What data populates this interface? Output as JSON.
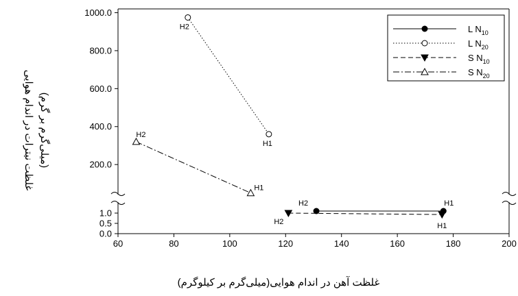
{
  "chart_data": {
    "type": "line",
    "xlabel": "غلظت آهن در اندام هوایی(میلی‌گرم بر کیلوگرم)",
    "ylabel": [
      "غلظت نیترات در اندام هوایی",
      "(میلی‌گرم بر گرم)"
    ],
    "xlim": [
      60,
      200
    ],
    "x_ticks": [
      60,
      80,
      100,
      120,
      140,
      160,
      180,
      200
    ],
    "x_tick_labels": [
      "60",
      "80",
      "100",
      "120",
      "140",
      "160",
      "180",
      "200"
    ],
    "y_axis_broken": true,
    "y_lower": {
      "ylim": [
        0,
        1.2
      ],
      "ticks": [
        0,
        0.5,
        1
      ],
      "tick_labels": [
        "0.0",
        "0.5",
        "1.0"
      ]
    },
    "y_upper": {
      "ylim": [
        20,
        1020
      ],
      "ticks": [
        200,
        400,
        600,
        800,
        1000
      ],
      "tick_labels": [
        "200.0",
        "400.0",
        "600.0",
        "800.0",
        "1000.0"
      ]
    },
    "grid": false,
    "legend_position": "top-right",
    "series": [
      {
        "name": "L N",
        "sub": "10",
        "line": "solid",
        "marker": "circle-filled",
        "segment": "lower",
        "points": [
          {
            "label": "H2",
            "x": 131,
            "y": 1.1
          },
          {
            "label": "H1",
            "x": 176.5,
            "y": 1.1
          }
        ]
      },
      {
        "name": "L N",
        "sub": "20",
        "line": "dotted",
        "marker": "circle-open",
        "segment": "upper",
        "points": [
          {
            "label": "H2",
            "x": 85,
            "y": 975
          },
          {
            "label": "H1",
            "x": 114,
            "y": 360
          }
        ]
      },
      {
        "name": "S N",
        "sub": "10",
        "line": "dashed",
        "marker": "triangle-down-filled",
        "segment": "lower",
        "points": [
          {
            "label": "H2",
            "x": 121,
            "y": 1.0
          },
          {
            "label": "H1",
            "x": 176,
            "y": 0.93
          }
        ]
      },
      {
        "name": "S N",
        "sub": "20",
        "line": "dashdot",
        "marker": "triangle-up-open",
        "segment": "upper",
        "points": [
          {
            "label": "H2",
            "x": 66.5,
            "y": 320
          },
          {
            "label": "H1",
            "x": 107.5,
            "y": 50
          }
        ]
      }
    ]
  }
}
